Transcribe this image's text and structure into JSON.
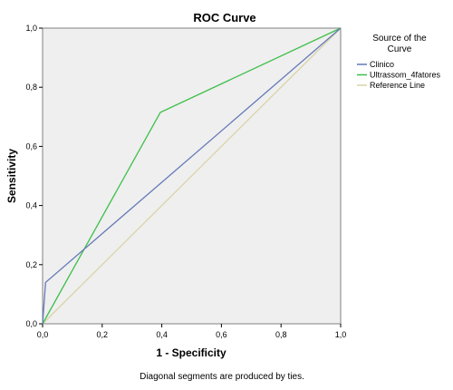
{
  "chart_data": {
    "type": "line",
    "title": "ROC Curve",
    "xlabel": "1 - Specificity",
    "ylabel": "Sensitivity",
    "xlim": [
      0,
      1
    ],
    "ylim": [
      0,
      1
    ],
    "x_ticks": [
      "0,0",
      "0,2",
      "0,4",
      "0,6",
      "0,8",
      "1,0"
    ],
    "y_ticks": [
      "0,0",
      "0,2",
      "0,4",
      "0,6",
      "0,8",
      "1,0"
    ],
    "grid": false,
    "legend_position": "right",
    "legend_title_lines": [
      "Source of the",
      "Curve"
    ],
    "series": [
      {
        "name": "Clinico",
        "color": "#6479b8",
        "points": [
          [
            0,
            0
          ],
          [
            0.01,
            0.14
          ],
          [
            1,
            1
          ]
        ]
      },
      {
        "name": "Ultrassom_4fatores",
        "color": "#3dbf4a",
        "points": [
          [
            0,
            0
          ],
          [
            0.395,
            0.715
          ],
          [
            1,
            1
          ]
        ]
      },
      {
        "name": "Reference Line",
        "color": "#d9d4a8",
        "points": [
          [
            0,
            0
          ],
          [
            1,
            1
          ]
        ]
      }
    ],
    "footnote": "Diagonal segments are produced by ties."
  }
}
